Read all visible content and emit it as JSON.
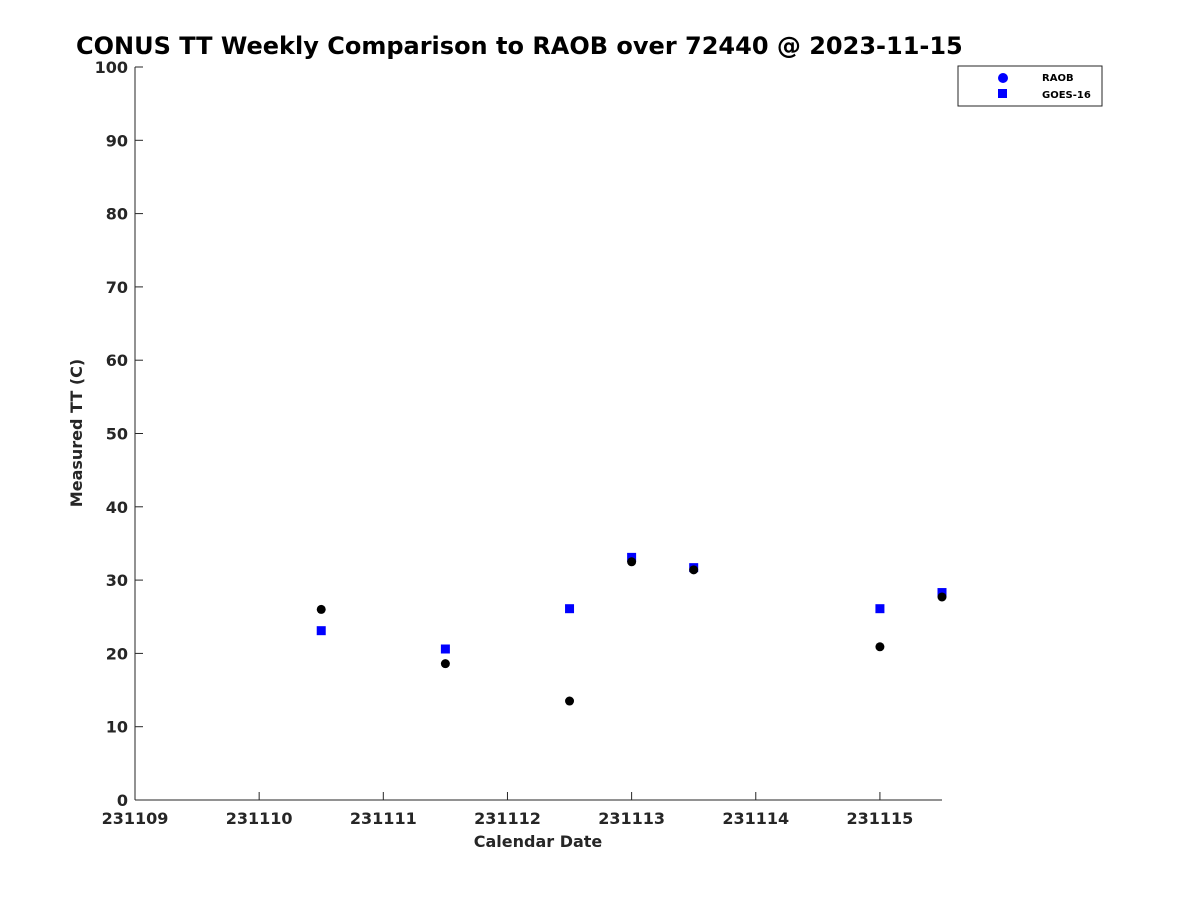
{
  "chart_data": {
    "type": "scatter",
    "title": "CONUS TT Weekly Comparison to RAOB over 72440 @ 2023-11-15",
    "xlabel": "Calendar Date",
    "ylabel": "Measured TT (C)",
    "xlim": [
      "2023-11-09 00:00",
      "2023-11-15 12:00"
    ],
    "ylim": [
      0,
      100
    ],
    "x_ticks": [
      {
        "value": "2023-11-09",
        "label": "231109"
      },
      {
        "value": "2023-11-10",
        "label": "231110"
      },
      {
        "value": "2023-11-11",
        "label": "231111"
      },
      {
        "value": "2023-11-12",
        "label": "231112"
      },
      {
        "value": "2023-11-13",
        "label": "231113"
      },
      {
        "value": "2023-11-14",
        "label": "231114"
      },
      {
        "value": "2023-11-15",
        "label": "231115"
      }
    ],
    "y_ticks": [
      0,
      10,
      20,
      30,
      40,
      50,
      60,
      70,
      80,
      90,
      100
    ],
    "grid": false,
    "legend_position": "top-right",
    "series": [
      {
        "name": "RAOB",
        "marker": "circle",
        "color": "#000000",
        "legend_color": "#0000ff",
        "points": [
          {
            "x": "2023-11-10 12:00",
            "y": 26.0
          },
          {
            "x": "2023-11-11 12:00",
            "y": 18.6
          },
          {
            "x": "2023-11-12 12:00",
            "y": 13.5
          },
          {
            "x": "2023-11-13 00:00",
            "y": 32.5
          },
          {
            "x": "2023-11-13 12:00",
            "y": 31.4
          },
          {
            "x": "2023-11-15 00:00",
            "y": 20.9
          },
          {
            "x": "2023-11-15 12:00",
            "y": 27.7
          }
        ]
      },
      {
        "name": "GOES-16",
        "marker": "square",
        "color": "#0000ff",
        "legend_color": "#0000ff",
        "points": [
          {
            "x": "2023-11-10 12:00",
            "y": 23.1
          },
          {
            "x": "2023-11-11 12:00",
            "y": 20.6
          },
          {
            "x": "2023-11-12 12:00",
            "y": 26.1
          },
          {
            "x": "2023-11-13 00:00",
            "y": 33.1
          },
          {
            "x": "2023-11-13 12:00",
            "y": 31.7
          },
          {
            "x": "2023-11-15 00:00",
            "y": 26.1
          },
          {
            "x": "2023-11-15 12:00",
            "y": 28.3
          }
        ]
      }
    ]
  }
}
